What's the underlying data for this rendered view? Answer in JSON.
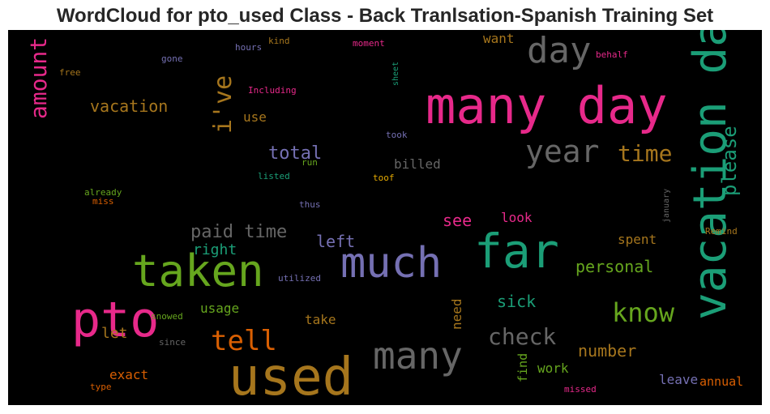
{
  "chart_data": {
    "type": "wordcloud",
    "title": "WordCloud for pto_used Class - Back Tranlsation-Spanish Training Set",
    "background": "#000000",
    "colormap": "Dark2",
    "colors": {
      "pink": "#e7298a",
      "teal": "#1b9e77",
      "purple": "#7570b3",
      "green": "#66a61e",
      "orange": "#d95f02",
      "gold": "#a6761d",
      "gray": "#666666",
      "yellow": "#e6ab02"
    },
    "words": [
      {
        "text": "many day",
        "size": 62,
        "color": "pink",
        "vertical": false
      },
      {
        "text": "used",
        "size": 64,
        "color": "gold",
        "vertical": false
      },
      {
        "text": "taken",
        "size": 54,
        "color": "green",
        "vertical": false
      },
      {
        "text": "far",
        "size": 58,
        "color": "teal",
        "vertical": false
      },
      {
        "text": "much",
        "size": 52,
        "color": "purple",
        "vertical": false
      },
      {
        "text": "pto",
        "size": 60,
        "color": "pink",
        "vertical": false
      },
      {
        "text": "vacation days",
        "size": 56,
        "color": "teal",
        "vertical": true
      },
      {
        "text": "many",
        "size": 46,
        "color": "gray",
        "vertical": false
      },
      {
        "text": "day",
        "size": 44,
        "color": "gray",
        "vertical": false
      },
      {
        "text": "year",
        "size": 38,
        "color": "gray",
        "vertical": false
      },
      {
        "text": "know",
        "size": 32,
        "color": "green",
        "vertical": false
      },
      {
        "text": "tell",
        "size": 34,
        "color": "orange",
        "vertical": false
      },
      {
        "text": "check",
        "size": 28,
        "color": "gray",
        "vertical": false
      },
      {
        "text": "time",
        "size": 28,
        "color": "gold",
        "vertical": false
      },
      {
        "text": "i've",
        "size": 30,
        "color": "gold",
        "vertical": true
      },
      {
        "text": "amount",
        "size": 28,
        "color": "pink",
        "vertical": true
      },
      {
        "text": "please",
        "size": 24,
        "color": "teal",
        "vertical": true
      },
      {
        "text": "paid time",
        "size": 22,
        "color": "gray",
        "vertical": false
      },
      {
        "text": "total",
        "size": 22,
        "color": "purple",
        "vertical": false
      },
      {
        "text": "vacation",
        "size": 20,
        "color": "gold",
        "vertical": false
      },
      {
        "text": "personal",
        "size": 20,
        "color": "green",
        "vertical": false
      },
      {
        "text": "number",
        "size": 20,
        "color": "gold",
        "vertical": false
      },
      {
        "text": "sick",
        "size": 20,
        "color": "teal",
        "vertical": false
      },
      {
        "text": "see",
        "size": 20,
        "color": "pink",
        "vertical": false
      },
      {
        "text": "left",
        "size": 20,
        "color": "purple",
        "vertical": false
      },
      {
        "text": "right",
        "size": 18,
        "color": "teal",
        "vertical": false
      },
      {
        "text": "let",
        "size": 18,
        "color": "gold",
        "vertical": false
      },
      {
        "text": "exact",
        "size": 16,
        "color": "orange",
        "vertical": false
      },
      {
        "text": "billed",
        "size": 16,
        "color": "gray",
        "vertical": false
      },
      {
        "text": "use",
        "size": 16,
        "color": "gold",
        "vertical": false
      },
      {
        "text": "usage",
        "size": 16,
        "color": "green",
        "vertical": false
      },
      {
        "text": "take",
        "size": 16,
        "color": "gold",
        "vertical": false
      },
      {
        "text": "look",
        "size": 16,
        "color": "pink",
        "vertical": false
      },
      {
        "text": "want",
        "size": 16,
        "color": "gold",
        "vertical": false
      },
      {
        "text": "spent",
        "size": 16,
        "color": "gold",
        "vertical": false
      },
      {
        "text": "work",
        "size": 16,
        "color": "green",
        "vertical": false
      },
      {
        "text": "leave",
        "size": 16,
        "color": "purple",
        "vertical": false
      },
      {
        "text": "annual",
        "size": 15,
        "color": "orange",
        "vertical": false
      },
      {
        "text": "need",
        "size": 16,
        "color": "gold",
        "vertical": true
      },
      {
        "text": "find",
        "size": 15,
        "color": "green",
        "vertical": true
      },
      {
        "text": "gone",
        "size": 11,
        "color": "purple",
        "vertical": false
      },
      {
        "text": "hours",
        "size": 11,
        "color": "purple",
        "vertical": false
      },
      {
        "text": "kind",
        "size": 11,
        "color": "gold",
        "vertical": false
      },
      {
        "text": "moment",
        "size": 11,
        "color": "pink",
        "vertical": false
      },
      {
        "text": "behalf",
        "size": 11,
        "color": "pink",
        "vertical": false
      },
      {
        "text": "free",
        "size": 11,
        "color": "gold",
        "vertical": false
      },
      {
        "text": "Including",
        "size": 11,
        "color": "pink",
        "vertical": false
      },
      {
        "text": "sheet",
        "size": 10,
        "color": "teal",
        "vertical": true
      },
      {
        "text": "took",
        "size": 11,
        "color": "purple",
        "vertical": false
      },
      {
        "text": "run",
        "size": 11,
        "color": "green",
        "vertical": false
      },
      {
        "text": "listed",
        "size": 11,
        "color": "teal",
        "vertical": false
      },
      {
        "text": "toof",
        "size": 11,
        "color": "yellow",
        "vertical": false
      },
      {
        "text": "already",
        "size": 11,
        "color": "green",
        "vertical": false
      },
      {
        "text": "miss",
        "size": 11,
        "color": "orange",
        "vertical": false
      },
      {
        "text": "thus",
        "size": 11,
        "color": "purple",
        "vertical": false
      },
      {
        "text": "january",
        "size": 10,
        "color": "gray",
        "vertical": true
      },
      {
        "text": "Remind",
        "size": 11,
        "color": "gold",
        "vertical": false
      },
      {
        "text": "utilized",
        "size": 11,
        "color": "purple",
        "vertical": false
      },
      {
        "text": "snowed",
        "size": 11,
        "color": "green",
        "vertical": false
      },
      {
        "text": "since",
        "size": 11,
        "color": "gray",
        "vertical": false
      },
      {
        "text": "type",
        "size": 11,
        "color": "orange",
        "vertical": false
      },
      {
        "text": "missed",
        "size": 11,
        "color": "pink",
        "vertical": false
      }
    ]
  }
}
